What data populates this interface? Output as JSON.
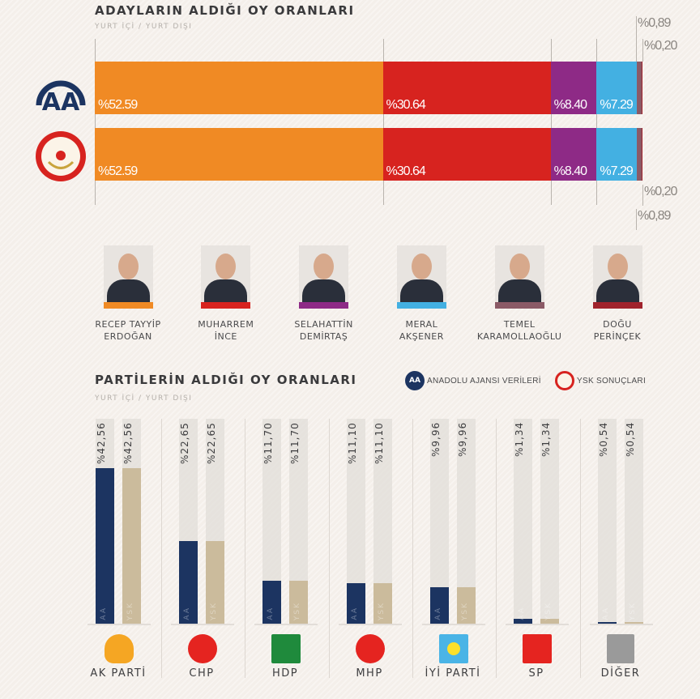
{
  "candidates_chart": {
    "title": "ADAYLARIN ALDIĞI OY ORANLARI",
    "subtitle": "YURT İÇİ / YURT DIŞI",
    "chart_data": {
      "type": "bar",
      "orientation": "horizontal-stacked",
      "rows": [
        "Anadolu Ajansı",
        "YSK"
      ],
      "series": [
        {
          "candidate": "RECEP TAYYİP ERDOĞAN",
          "color": "#f08a24",
          "values": [
            52.59,
            52.59
          ],
          "labels": [
            "%52.59",
            "%52.59"
          ]
        },
        {
          "candidate": "MUHARREM İNCE",
          "color": "#d7231f",
          "values": [
            30.64,
            30.64
          ],
          "labels": [
            "%30.64",
            "%30.64"
          ]
        },
        {
          "candidate": "SELAHATTİN DEMİRTAŞ",
          "color": "#8e2a86",
          "values": [
            8.4,
            8.4
          ],
          "labels": [
            "%8.40",
            "%8.40"
          ]
        },
        {
          "candidate": "MERAL AKŞENER",
          "color": "#43b0e2",
          "values": [
            7.29,
            7.29
          ],
          "labels": [
            "%7.29",
            "%7.29"
          ]
        },
        {
          "candidate": "TEMEL KARAMOLLAOĞLU",
          "color": "#8b5a66",
          "values": [
            0.89,
            0.89
          ],
          "labels": [
            "%0,89",
            "%0,89"
          ]
        },
        {
          "candidate": "DOĞU PERİNÇEK",
          "color": "#a0232c",
          "values": [
            0.2,
            0.2
          ],
          "labels": [
            "%0,20",
            "%0,20"
          ]
        }
      ],
      "xlim": [
        0,
        100
      ]
    }
  },
  "candidates": [
    {
      "line1": "RECEP TAYYİP",
      "line2": "ERDOĞAN",
      "color": "#f08a24"
    },
    {
      "line1": "MUHARREM",
      "line2": "İNCE",
      "color": "#d7231f"
    },
    {
      "line1": "SELAHATTİN",
      "line2": "DEMİRTAŞ",
      "color": "#8e2a86"
    },
    {
      "line1": "MERAL",
      "line2": "AKŞENER",
      "color": "#43b0e2"
    },
    {
      "line1": "TEMEL",
      "line2": "KARAMOLLAOĞLU",
      "color": "#8b5a66"
    },
    {
      "line1": "DOĞU",
      "line2": "PERİNÇEK",
      "color": "#a0232c"
    }
  ],
  "parties_chart": {
    "title": "PARTİLERİN ALDIĞI OY ORANLARI",
    "subtitle": "YURT İÇİ / YURT DIŞI",
    "legend": [
      {
        "label": "ANADOLU AJANSI VERİLERİ",
        "color": "#1c3461"
      },
      {
        "label": "YSK SONUÇLARI",
        "color": "#cbbb9c"
      }
    ],
    "chart_data": {
      "type": "bar",
      "categories": [
        "AK PARTİ",
        "CHP",
        "HDP",
        "MHP",
        "İYİ PARTİ",
        "SP",
        "DİĞER"
      ],
      "series": [
        {
          "source_tag": "AA",
          "color": "#1c3461",
          "values": [
            42.56,
            22.65,
            11.7,
            11.1,
            9.96,
            1.34,
            0.54
          ],
          "labels": [
            "%42,56",
            "%22,65",
            "%11,70",
            "%11,10",
            "%9,96",
            "%1,34",
            "%0,54"
          ]
        },
        {
          "source_tag": "YSK",
          "color": "#cbbb9c",
          "values": [
            42.56,
            22.65,
            11.7,
            11.1,
            9.96,
            1.34,
            0.54
          ],
          "labels": [
            "%42,56",
            "%22,65",
            "%11,70",
            "%11,10",
            "%9,96",
            "%1,34",
            "%0,54"
          ]
        }
      ]
    },
    "party_icons": [
      "lightbulb-icon",
      "six-arrows-icon",
      "tree-icon",
      "crescents-icon",
      "sun-icon",
      "crescent-star-icon",
      "white-flag-icon"
    ]
  }
}
